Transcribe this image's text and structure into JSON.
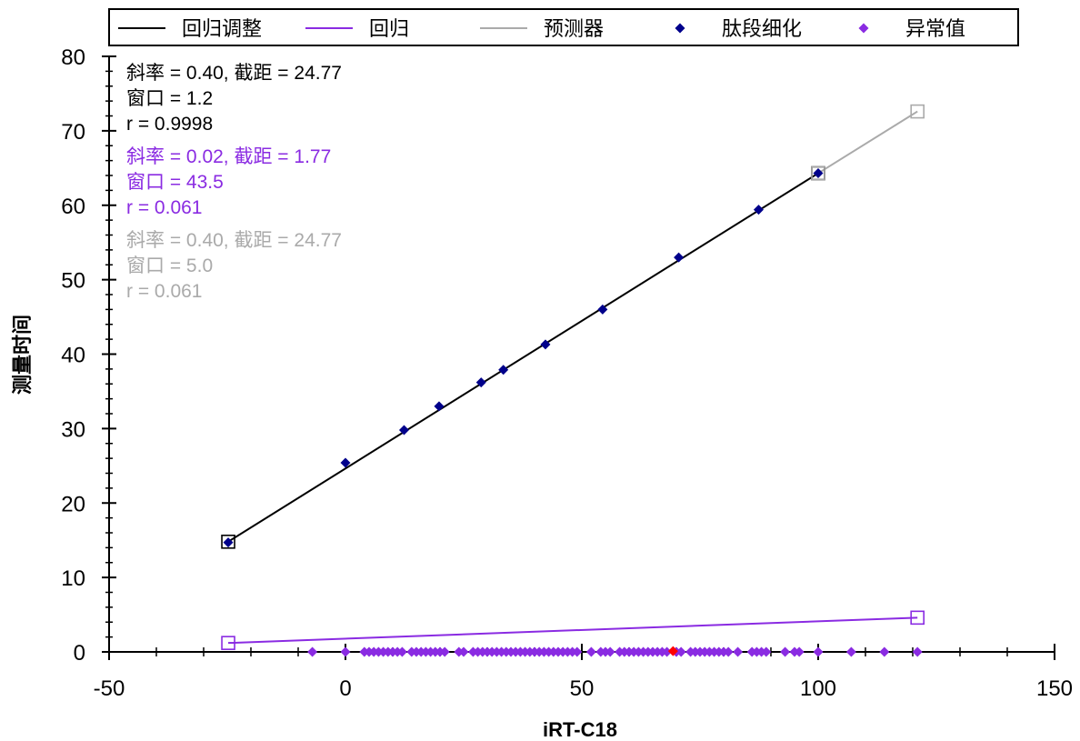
{
  "chart_data": {
    "type": "scatter",
    "xlabel": "iRT-C18",
    "ylabel": "测量时间",
    "xlim": [
      -50,
      150
    ],
    "ylim": [
      0,
      80
    ],
    "x_ticks": [
      -50,
      0,
      50,
      100,
      150
    ],
    "y_ticks": [
      0,
      10,
      20,
      30,
      40,
      50,
      60,
      70,
      80
    ],
    "x_tick_labels": [
      "-50",
      "0",
      "50",
      "100",
      "150"
    ],
    "y_tick_labels": [
      "0",
      "10",
      "20",
      "30",
      "40",
      "50",
      "60",
      "70",
      "80"
    ],
    "legend": {
      "placement": "top",
      "entries": [
        {
          "label": "回归调整",
          "symbol": "line",
          "color": "#000000"
        },
        {
          "label": "回归",
          "symbol": "line",
          "color": "#8a2be2"
        },
        {
          "label": "预测器",
          "symbol": "line",
          "color": "#aaaaaa"
        },
        {
          "label": "肽段细化",
          "symbol": "diamond",
          "color": "#00008b"
        },
        {
          "label": "异常值",
          "symbol": "diamond",
          "color": "#8a2be2"
        }
      ]
    },
    "stats": [
      {
        "lines": [
          "斜率 = 0.40, 截距 = 24.77",
          "窗口 = 1.2",
          "r = 0.9998"
        ],
        "color": "#000000"
      },
      {
        "lines": [
          "斜率 = 0.02, 截距 = 1.77",
          "窗口 = 43.5",
          "r = 0.061"
        ],
        "color": "#8a2be2"
      },
      {
        "lines": [
          "斜率 = 0.40, 截距 = 24.77",
          "窗口 = 5.0",
          "r = 0.061"
        ],
        "color": "#aaaaaa"
      }
    ],
    "series": [
      {
        "name": "肽段细化",
        "type": "scatter",
        "marker": "diamond",
        "color": "#00008b",
        "points": [
          [
            -24.8,
            14.7
          ],
          [
            0.0,
            25.4
          ],
          [
            12.4,
            29.8
          ],
          [
            19.8,
            33.0
          ],
          [
            28.7,
            36.2
          ],
          [
            33.4,
            37.9
          ],
          [
            42.3,
            41.3
          ],
          [
            54.4,
            46.0
          ],
          [
            70.5,
            53.0
          ],
          [
            87.4,
            59.4
          ],
          [
            100.0,
            64.3
          ]
        ]
      },
      {
        "name": "异常值",
        "type": "scatter",
        "marker": "diamond",
        "color": "#8a2be2",
        "points": [
          [
            -7,
            0
          ],
          [
            0,
            0
          ],
          [
            4,
            0
          ],
          [
            5,
            0
          ],
          [
            6,
            0
          ],
          [
            7,
            0
          ],
          [
            8,
            0
          ],
          [
            9,
            0
          ],
          [
            10,
            0
          ],
          [
            11,
            0
          ],
          [
            12,
            0
          ],
          [
            14,
            0
          ],
          [
            15,
            0
          ],
          [
            16,
            0
          ],
          [
            17,
            0
          ],
          [
            18,
            0
          ],
          [
            19,
            0
          ],
          [
            20,
            0
          ],
          [
            21,
            0
          ],
          [
            24,
            0
          ],
          [
            25,
            0
          ],
          [
            27,
            0
          ],
          [
            28,
            0
          ],
          [
            29,
            0
          ],
          [
            30,
            0
          ],
          [
            31,
            0
          ],
          [
            32,
            0
          ],
          [
            33,
            0
          ],
          [
            34,
            0
          ],
          [
            35,
            0
          ],
          [
            36,
            0
          ],
          [
            37,
            0
          ],
          [
            38,
            0
          ],
          [
            39,
            0
          ],
          [
            40,
            0
          ],
          [
            41,
            0
          ],
          [
            42,
            0
          ],
          [
            43,
            0
          ],
          [
            44,
            0
          ],
          [
            45,
            0
          ],
          [
            46,
            0
          ],
          [
            47,
            0
          ],
          [
            48,
            0
          ],
          [
            49,
            0
          ],
          [
            52,
            0
          ],
          [
            54,
            0
          ],
          [
            55,
            0
          ],
          [
            56,
            0
          ],
          [
            58,
            0
          ],
          [
            59,
            0
          ],
          [
            60,
            0
          ],
          [
            61,
            0
          ],
          [
            62,
            0
          ],
          [
            63,
            0
          ],
          [
            64,
            0
          ],
          [
            65,
            0
          ],
          [
            66,
            0
          ],
          [
            67,
            0
          ],
          [
            68,
            0
          ],
          [
            70,
            0
          ],
          [
            71,
            0
          ],
          [
            73,
            0
          ],
          [
            74,
            0
          ],
          [
            75,
            0
          ],
          [
            76,
            0
          ],
          [
            77,
            0
          ],
          [
            78,
            0
          ],
          [
            79,
            0
          ],
          [
            80,
            0
          ],
          [
            81,
            0
          ],
          [
            83,
            0
          ],
          [
            86,
            0
          ],
          [
            87,
            0
          ],
          [
            88,
            0
          ],
          [
            89,
            0
          ],
          [
            93,
            0
          ],
          [
            95,
            0
          ],
          [
            96,
            0
          ],
          [
            100,
            0
          ],
          [
            107,
            0
          ],
          [
            114,
            0
          ],
          [
            121,
            0
          ]
        ]
      },
      {
        "name": "",
        "type": "scatter",
        "marker": "diamond",
        "color": "#ff0000",
        "points": [
          [
            69.3,
            0.1
          ]
        ]
      },
      {
        "name": "回归调整",
        "type": "line",
        "color": "#000000",
        "points": [
          [
            -24.8,
            14.8
          ],
          [
            100.0,
            64.3
          ]
        ],
        "end_markers": "square"
      },
      {
        "name": "回归",
        "type": "line",
        "color": "#8a2be2",
        "points": [
          [
            -24.8,
            1.2
          ],
          [
            121.0,
            4.6
          ]
        ],
        "end_markers": "square"
      },
      {
        "name": "预测器",
        "type": "line",
        "color": "#aaaaaa",
        "points": [
          [
            100.0,
            64.3
          ],
          [
            121.0,
            72.6
          ]
        ],
        "end_markers": "square"
      }
    ]
  }
}
